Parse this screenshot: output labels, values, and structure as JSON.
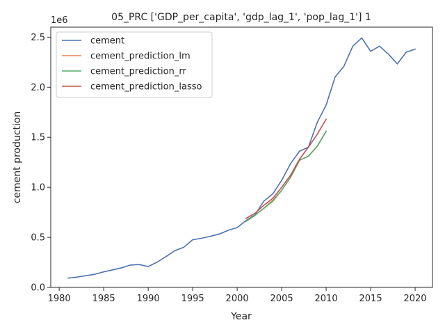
{
  "chart_data": {
    "type": "line",
    "title": "05_PRC ['GDP_per_capita', 'gdp_lag_1', 'pop_lag_1'] 1",
    "xlabel": "Year",
    "ylabel": "cement production",
    "y_offset_label": "1e6",
    "xlim": [
      1979.05,
      2021.95
    ],
    "ylim": [
      0,
      2.6
    ],
    "y_multiplier": 1000000,
    "x_ticks": [
      1980,
      1985,
      1990,
      1995,
      2000,
      2005,
      2010,
      2015,
      2020
    ],
    "x_tick_labels": [
      "1980",
      "1985",
      "1990",
      "1995",
      "2000",
      "2005",
      "2010",
      "2015",
      "2020"
    ],
    "y_ticks": [
      0.0,
      0.5,
      1.0,
      1.5,
      2.0,
      2.5
    ],
    "y_tick_labels": [
      "0.0",
      "0.5",
      "1.0",
      "1.5",
      "2.0",
      "2.5"
    ],
    "grid": false,
    "legend_position": "top-left",
    "series": [
      {
        "name": "cement",
        "color": "#4c72b0",
        "x": [
          1981,
          1982,
          1983,
          1984,
          1985,
          1986,
          1987,
          1988,
          1989,
          1990,
          1991,
          1992,
          1993,
          1994,
          1995,
          1996,
          1997,
          1998,
          1999,
          2000,
          2001,
          2002,
          2003,
          2004,
          2005,
          2006,
          2007,
          2008,
          2009,
          2010,
          2011,
          2012,
          2013,
          2014,
          2015,
          2016,
          2017,
          2018,
          2019,
          2020
        ],
        "y": [
          0.093,
          0.103,
          0.117,
          0.131,
          0.155,
          0.175,
          0.195,
          0.223,
          0.228,
          0.208,
          0.252,
          0.307,
          0.367,
          0.401,
          0.476,
          0.491,
          0.511,
          0.533,
          0.571,
          0.597,
          0.668,
          0.725,
          0.862,
          0.934,
          1.069,
          1.236,
          1.361,
          1.4,
          1.648,
          1.822,
          2.1,
          2.21,
          2.41,
          2.492,
          2.359,
          2.41,
          2.33,
          2.233,
          2.35,
          2.38
        ]
      },
      {
        "name": "cement_prediction_lm",
        "color": "#dd8452",
        "x": [
          2001,
          2002,
          2003,
          2004,
          2005,
          2006,
          2007,
          2008,
          2009,
          2010
        ],
        "y": [
          0.66,
          0.72,
          0.79,
          0.87,
          0.97,
          1.1,
          1.27,
          1.31,
          1.41,
          1.56
        ]
      },
      {
        "name": "cement_prediction_rr",
        "color": "#55a868",
        "x": [
          2001,
          2002,
          2003,
          2004,
          2005,
          2006,
          2007,
          2008,
          2009,
          2010
        ],
        "y": [
          0.66,
          0.72,
          0.79,
          0.86,
          0.97,
          1.1,
          1.27,
          1.31,
          1.41,
          1.56
        ]
      },
      {
        "name": "cement_prediction_lasso",
        "color": "#c44e52",
        "x": [
          2001,
          2002,
          2003,
          2004,
          2005,
          2006,
          2007,
          2008,
          2009,
          2010
        ],
        "y": [
          0.69,
          0.74,
          0.82,
          0.89,
          1.0,
          1.12,
          1.28,
          1.4,
          1.53,
          1.68
        ]
      }
    ]
  }
}
